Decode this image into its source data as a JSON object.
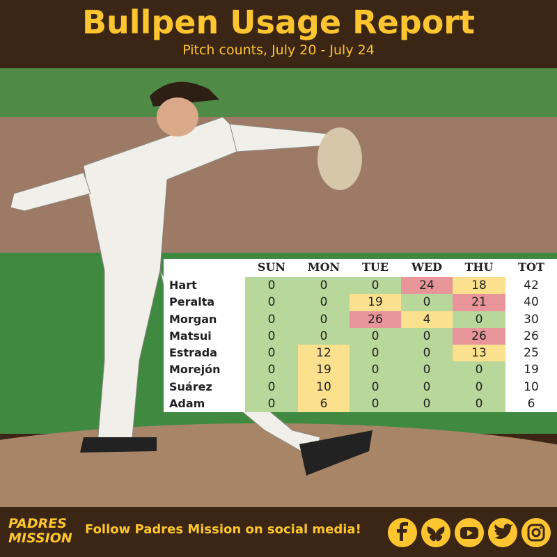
{
  "header": {
    "title": "Bullpen Usage Report",
    "subtitle": "Pitch counts, July 20 - July 24"
  },
  "table": {
    "columns": [
      "SUN",
      "MON",
      "TUE",
      "WED",
      "THU",
      "TOT"
    ],
    "rows": [
      [
        "Hart",
        0,
        0,
        0,
        24,
        18,
        42
      ],
      [
        "Peralta",
        0,
        0,
        19,
        0,
        21,
        40
      ],
      [
        "Morgan",
        0,
        0,
        26,
        4,
        0,
        30
      ],
      [
        "Matsui",
        0,
        0,
        0,
        0,
        26,
        26
      ],
      [
        "Estrada",
        0,
        12,
        0,
        0,
        13,
        25
      ],
      [
        "Morejón",
        0,
        19,
        0,
        0,
        0,
        19
      ],
      [
        "Suárez",
        0,
        10,
        0,
        0,
        0,
        10
      ],
      [
        "Adam",
        0,
        6,
        0,
        0,
        0,
        6
      ]
    ],
    "colors": {
      "zero": "#b8d79b",
      "low": "#fbe08d",
      "high": "#e8959a"
    }
  },
  "footer": {
    "logo": [
      "PADRES",
      "MISSION"
    ],
    "text": "Follow Padres Mission on social media!"
  }
}
